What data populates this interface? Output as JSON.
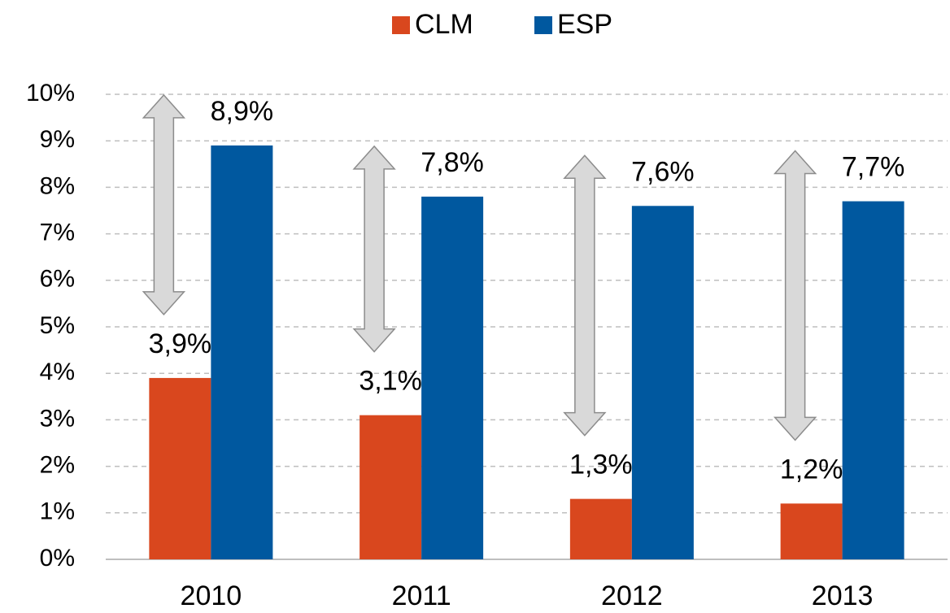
{
  "chart_data": {
    "type": "bar",
    "categories": [
      "2010",
      "2011",
      "2012",
      "2013"
    ],
    "series": [
      {
        "name": "CLM",
        "color": "#d9471e",
        "values": [
          3.9,
          3.1,
          1.3,
          1.2
        ],
        "value_labels": [
          "3,9%",
          "3,1%",
          "1,3%",
          "1,2%"
        ]
      },
      {
        "name": "ESP",
        "color": "#00589f",
        "values": [
          8.9,
          7.8,
          7.6,
          7.7
        ],
        "value_labels": [
          "8,9%",
          "7,8%",
          "7,6%",
          "7,7%"
        ]
      }
    ],
    "ylim": [
      0,
      10
    ],
    "yticks": [
      {
        "value": 0,
        "label": "0%"
      },
      {
        "value": 1,
        "label": "1%"
      },
      {
        "value": 2,
        "label": "2%"
      },
      {
        "value": 3,
        "label": "3%"
      },
      {
        "value": 4,
        "label": "4%"
      },
      {
        "value": 5,
        "label": "5%"
      },
      {
        "value": 6,
        "label": "6%"
      },
      {
        "value": 7,
        "label": "7%"
      },
      {
        "value": 8,
        "label": "8%"
      },
      {
        "value": 9,
        "label": "9%"
      },
      {
        "value": 10,
        "label": "10%"
      }
    ],
    "grid": true,
    "legend": "top"
  }
}
